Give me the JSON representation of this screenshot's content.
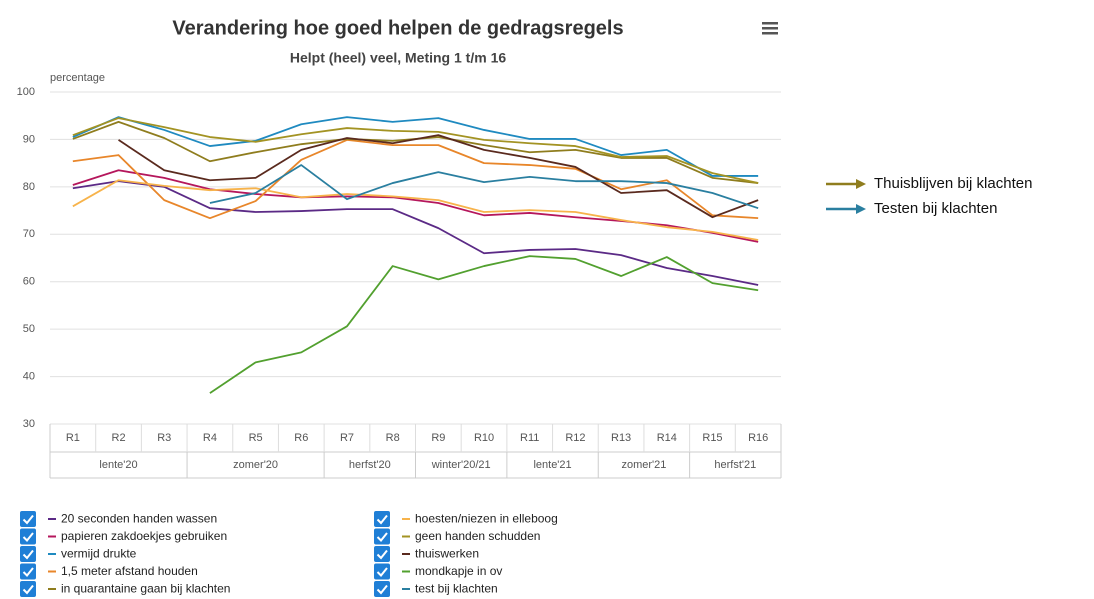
{
  "chart_data": {
    "type": "line",
    "title": "Verandering hoe goed helpen de gedragsregels",
    "subtitle": "Helpt (heel) veel, Meting 1 t/m 16",
    "y_label": "percentage",
    "categories": [
      "R1",
      "R2",
      "R3",
      "R4",
      "R5",
      "R6",
      "R7",
      "R8",
      "R9",
      "R10",
      "R11",
      "R12",
      "R13",
      "R14",
      "R15",
      "R16"
    ],
    "category_groups": [
      {
        "label": "lente'20",
        "span": 3
      },
      {
        "label": "zomer'20",
        "span": 3
      },
      {
        "label": "herfst'20",
        "span": 2
      },
      {
        "label": "winter'20/21",
        "span": 2
      },
      {
        "label": "lente'21",
        "span": 2
      },
      {
        "label": "zomer'21",
        "span": 2
      },
      {
        "label": "herfst'21",
        "span": 2
      }
    ],
    "ylim": [
      30,
      100
    ],
    "yticks": [
      30,
      40,
      50,
      60,
      70,
      80,
      90,
      100
    ],
    "grid": true,
    "series": [
      {
        "name": "20 seconden handen wassen",
        "color": "#5b2a86",
        "values": [
          79.7,
          81.2,
          80,
          75.5,
          74.7,
          74.9,
          75.3,
          75.3,
          71.3,
          66,
          66.7,
          66.9,
          65.6,
          62.9,
          61.2,
          59.3
        ]
      },
      {
        "name": "papieren zakdoekjes gebruiken",
        "color": "#b5175c",
        "values": [
          80.4,
          83.5,
          81.9,
          79.5,
          78.5,
          77.8,
          78,
          77.8,
          76.6,
          74,
          74.5,
          73.6,
          72.8,
          71.9,
          70.3,
          68.4
        ]
      },
      {
        "name": "vermijd drukte",
        "color": "#1f8ac0",
        "values": [
          90.5,
          94.7,
          92,
          88.6,
          89.7,
          93.2,
          94.7,
          93.7,
          94.5,
          92,
          90.1,
          90.1,
          86.7,
          87.8,
          82.3,
          82.3
        ]
      },
      {
        "name": "1,5 meter afstand houden",
        "color": "#e8862a",
        "values": [
          85.4,
          86.7,
          77.2,
          73.4,
          77,
          85.7,
          89.9,
          88.8,
          88.8,
          85,
          84.6,
          83.8,
          79.5,
          81.4,
          74,
          73.4
        ]
      },
      {
        "name": "in quarantaine gaan bij klachten",
        "color": "#8f7d1e",
        "values": [
          90.1,
          93.7,
          90.3,
          85.4,
          87.3,
          89,
          90.1,
          89.7,
          90.5,
          88.8,
          87.3,
          87.8,
          86.1,
          86.1,
          81.9,
          80.8
        ]
      },
      {
        "name": "hoesten/niezen in elleboog",
        "color": "#f7b34b",
        "values": [
          75.9,
          81.4,
          80.2,
          79.3,
          79.7,
          77.8,
          78.5,
          78,
          77.2,
          74.7,
          75.1,
          74.7,
          73,
          71.5,
          70.5,
          68.8
        ]
      },
      {
        "name": "geen handen schudden",
        "color": "#a39323",
        "values": [
          90.9,
          94.5,
          92.6,
          90.5,
          89.5,
          91.1,
          92.4,
          91.8,
          91.6,
          89.9,
          89.2,
          88.6,
          86.3,
          86.5,
          82.9,
          80.8
        ]
      },
      {
        "name": "thuiswerken",
        "color": "#5a2a1e",
        "values": [
          null,
          89.9,
          83.5,
          81.4,
          81.9,
          87.8,
          90.3,
          89.2,
          90.9,
          87.8,
          86.1,
          84.2,
          78.7,
          79.3,
          73.6,
          77.2
        ]
      },
      {
        "name": "mondkapje in ov",
        "color": "#52a02f",
        "values": [
          null,
          null,
          null,
          36.5,
          43,
          45.1,
          50.6,
          63.3,
          60.5,
          63.3,
          65.4,
          64.8,
          61.2,
          65.2,
          59.7,
          58.2
        ]
      },
      {
        "name": "test bij klachten",
        "color": "#2a7fa0",
        "values": [
          null,
          null,
          null,
          76.6,
          78.7,
          84.6,
          77.4,
          80.8,
          83.1,
          81,
          82.1,
          81.2,
          81.2,
          80.8,
          78.7,
          75.5
        ]
      }
    ],
    "annotations": [
      {
        "text": "Thuisblijven bij klachten",
        "color": "#8f7d1e"
      },
      {
        "text": "Testen bij klachten",
        "color": "#2a7fa0"
      }
    ]
  }
}
